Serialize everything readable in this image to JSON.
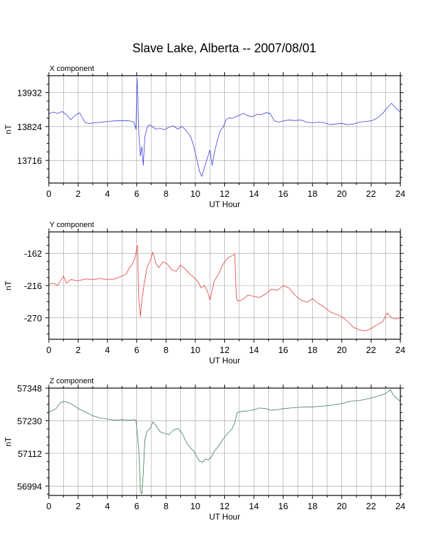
{
  "title": "Slave Lake, Alberta -- 2007/08/01",
  "chart_data": [
    {
      "type": "line",
      "panel_title": "X component",
      "xlabel": "UT Hour",
      "ylabel": "nT",
      "xlim": [
        0,
        24
      ],
      "ylim": [
        13644,
        13986
      ],
      "x_ticks": [
        0,
        2,
        4,
        6,
        8,
        10,
        12,
        14,
        16,
        18,
        20,
        22,
        24
      ],
      "y_ticks": [
        13716,
        13824,
        13932
      ],
      "grid": true,
      "series": [
        {
          "color": "#3b3bd9",
          "x": [
            0,
            0.3,
            0.6,
            0.9,
            1.2,
            1.5,
            1.8,
            2.1,
            2.3,
            2.5,
            2.8,
            3.2,
            3.6,
            4,
            4.5,
            5,
            5.5,
            5.8,
            5.95,
            6.02,
            6.08,
            6.15,
            6.25,
            6.35,
            6.45,
            6.55,
            6.7,
            6.85,
            7,
            7.3,
            7.6,
            7.9,
            8.2,
            8.5,
            8.8,
            9.1,
            9.4,
            9.7,
            9.9,
            10.1,
            10.3,
            10.45,
            10.6,
            10.8,
            11,
            11.15,
            11.3,
            11.5,
            11.7,
            11.9,
            12.1,
            12.3,
            12.5,
            12.7,
            13,
            13.3,
            13.6,
            13.9,
            14.2,
            14.5,
            14.8,
            15.1,
            15.4,
            15.7,
            16,
            16.4,
            16.8,
            17.2,
            17.6,
            18,
            18.4,
            18.8,
            19.2,
            19.6,
            20,
            20.4,
            20.8,
            21.2,
            21.6,
            22,
            22.4,
            22.8,
            23.1,
            23.4,
            23.7,
            24
          ],
          "y": [
            13865,
            13870,
            13866,
            13872,
            13862,
            13846,
            13860,
            13868,
            13850,
            13836,
            13834,
            13836,
            13838,
            13840,
            13842,
            13843,
            13842,
            13838,
            13815,
            13978,
            13905,
            13800,
            13730,
            13760,
            13700,
            13790,
            13820,
            13830,
            13826,
            13816,
            13818,
            13814,
            13822,
            13826,
            13816,
            13824,
            13810,
            13790,
            13760,
            13720,
            13680,
            13665,
            13690,
            13720,
            13750,
            13700,
            13740,
            13780,
            13810,
            13822,
            13846,
            13852,
            13850,
            13854,
            13860,
            13866,
            13858,
            13855,
            13863,
            13862,
            13868,
            13866,
            13842,
            13838,
            13842,
            13845,
            13843,
            13845,
            13838,
            13836,
            13838,
            13836,
            13830,
            13832,
            13834,
            13830,
            13832,
            13838,
            13840,
            13842,
            13850,
            13866,
            13884,
            13898,
            13882,
            13870
          ]
        }
      ]
    },
    {
      "type": "line",
      "panel_title": "Y component",
      "xlabel": "UT Hour",
      "ylabel": "nT",
      "xlim": [
        0,
        24
      ],
      "ylim": [
        -306,
        -126
      ],
      "x_ticks": [
        0,
        2,
        4,
        6,
        8,
        10,
        12,
        14,
        16,
        18,
        20,
        22,
        24
      ],
      "y_ticks": [
        -270,
        -216,
        -162
      ],
      "grid": true,
      "series": [
        {
          "color": "#e03a3a",
          "x": [
            0,
            0.3,
            0.6,
            0.8,
            1,
            1.2,
            1.5,
            2,
            2.5,
            3,
            3.5,
            4,
            4.5,
            5,
            5.3,
            5.5,
            5.7,
            5.9,
            6.05,
            6.15,
            6.25,
            6.35,
            6.5,
            6.7,
            6.9,
            7.1,
            7.3,
            7.5,
            7.8,
            8.1,
            8.4,
            8.7,
            9,
            9.3,
            9.6,
            9.9,
            10.2,
            10.4,
            10.6,
            10.8,
            11,
            11.3,
            11.6,
            11.9,
            12.2,
            12.5,
            12.7,
            12.8,
            12.9,
            13.2,
            13.6,
            14,
            14.4,
            14.8,
            15.2,
            15.6,
            16,
            16.4,
            16.8,
            17.2,
            17.6,
            18,
            18.4,
            18.8,
            19.2,
            19.6,
            20,
            20.4,
            20.8,
            21.2,
            21.6,
            22,
            22.4,
            22.8,
            23.1,
            23.4,
            23.7,
            24
          ],
          "y": [
            -214,
            -212,
            -216,
            -208,
            -200,
            -212,
            -206,
            -208,
            -205,
            -206,
            -204,
            -206,
            -205,
            -200,
            -196,
            -186,
            -180,
            -168,
            -148,
            -240,
            -268,
            -240,
            -215,
            -186,
            -175,
            -160,
            -178,
            -186,
            -176,
            -180,
            -190,
            -192,
            -182,
            -188,
            -196,
            -202,
            -210,
            -220,
            -216,
            -224,
            -240,
            -208,
            -196,
            -180,
            -170,
            -166,
            -163,
            -236,
            -242,
            -240,
            -232,
            -234,
            -236,
            -230,
            -222,
            -224,
            -216,
            -220,
            -232,
            -240,
            -244,
            -238,
            -246,
            -252,
            -260,
            -264,
            -268,
            -276,
            -286,
            -290,
            -292,
            -288,
            -282,
            -276,
            -262,
            -270,
            -272,
            -270
          ]
        }
      ]
    },
    {
      "type": "line",
      "panel_title": "Z component",
      "xlabel": "UT Hour",
      "ylabel": "nT",
      "xlim": [
        0,
        24
      ],
      "ylim": [
        56960,
        57348
      ],
      "x_ticks": [
        0,
        2,
        4,
        6,
        8,
        10,
        12,
        14,
        16,
        18,
        20,
        22,
        24
      ],
      "y_ticks": [
        56994,
        57112,
        57230,
        57348
      ],
      "grid": true,
      "series": [
        {
          "color": "#3a7a55",
          "x": [
            0,
            0.2,
            0.5,
            0.8,
            1.1,
            1.4,
            1.7,
            2,
            2.5,
            3,
            3.5,
            4,
            4.5,
            5,
            5.5,
            5.8,
            5.95,
            6.05,
            6.15,
            6.25,
            6.35,
            6.45,
            6.55,
            6.7,
            6.9,
            7.1,
            7.3,
            7.6,
            7.9,
            8.2,
            8.5,
            8.8,
            9.1,
            9.4,
            9.7,
            9.9,
            10.1,
            10.3,
            10.5,
            10.7,
            10.9,
            11.1,
            11.3,
            11.6,
            11.9,
            12.2,
            12.5,
            12.7,
            12.85,
            13.2,
            13.6,
            14,
            14.4,
            14.8,
            15.2,
            15.6,
            16,
            16.5,
            17,
            17.5,
            18,
            18.5,
            19,
            19.5,
            20,
            20.5,
            21,
            21.5,
            22,
            22.5,
            23,
            23.3,
            23.6,
            24
          ],
          "y": [
            57262,
            57266,
            57274,
            57296,
            57300,
            57294,
            57286,
            57274,
            57262,
            57248,
            57240,
            57236,
            57232,
            57234,
            57232,
            57234,
            57232,
            57180,
            57120,
            56974,
            56966,
            57040,
            57160,
            57192,
            57200,
            57226,
            57214,
            57190,
            57184,
            57180,
            57196,
            57202,
            57186,
            57150,
            57130,
            57120,
            57100,
            57084,
            57080,
            57092,
            57088,
            57100,
            57120,
            57140,
            57164,
            57184,
            57200,
            57224,
            57260,
            57264,
            57266,
            57270,
            57276,
            57274,
            57268,
            57270,
            57274,
            57276,
            57278,
            57280,
            57280,
            57282,
            57284,
            57288,
            57292,
            57300,
            57302,
            57306,
            57312,
            57320,
            57328,
            57342,
            57318,
            57300
          ]
        }
      ]
    }
  ]
}
